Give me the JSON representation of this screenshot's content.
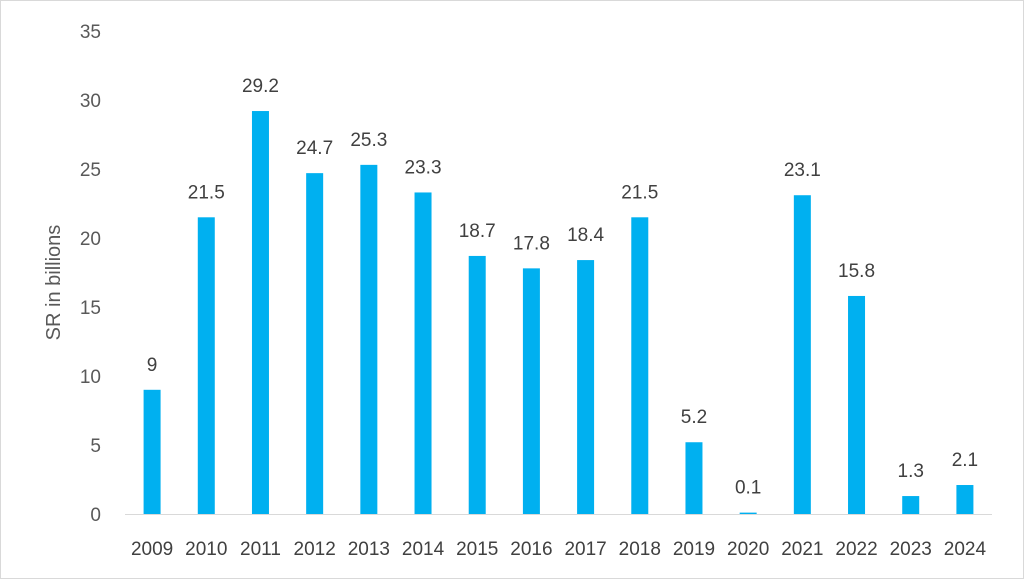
{
  "chart_data": {
    "type": "bar",
    "title": "",
    "xlabel": "",
    "ylabel": "SR in billions",
    "ylim": [
      0,
      35
    ],
    "yticks": [
      0,
      5,
      10,
      15,
      20,
      25,
      30,
      35
    ],
    "grid": false,
    "legend": "none",
    "bar_color": "#00B0F0",
    "categories": [
      "2009",
      "2010",
      "2011",
      "2012",
      "2013",
      "2014",
      "2015",
      "2016",
      "2017",
      "2018",
      "2019",
      "2020",
      "2021",
      "2022",
      "2023",
      "2024"
    ],
    "values": [
      9,
      21.5,
      29.2,
      24.7,
      25.3,
      23.3,
      18.7,
      17.8,
      18.4,
      21.5,
      5.2,
      0.1,
      23.1,
      15.8,
      1.3,
      2.1
    ]
  }
}
